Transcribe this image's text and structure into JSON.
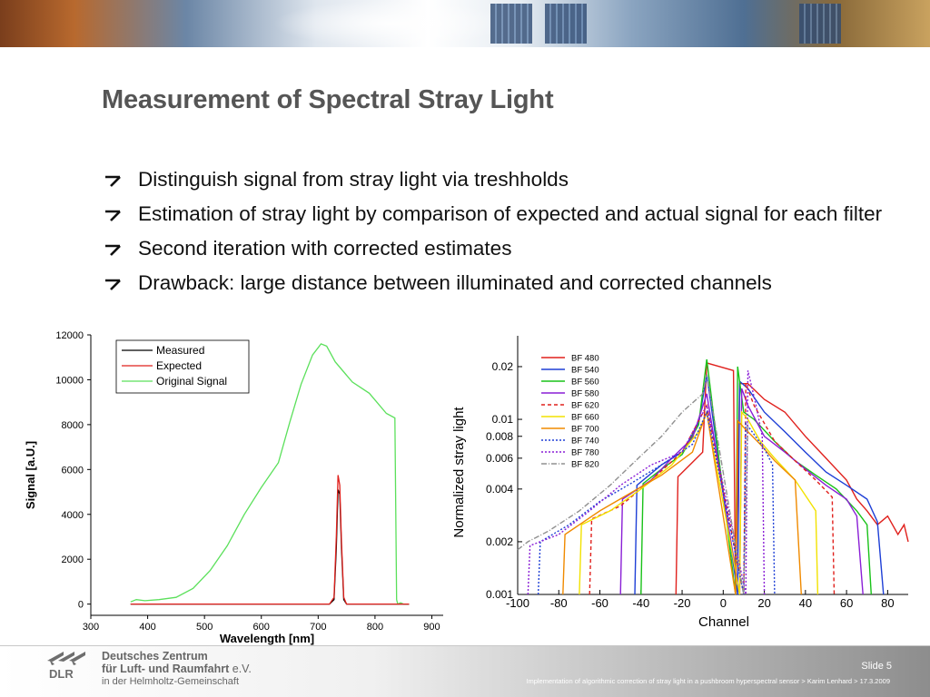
{
  "slide": {
    "title": "Measurement of Spectral Stray Light",
    "bullets": [
      "Distinguish signal from stray light via treshholds",
      "Estimation of stray light by comparison of expected and actual signal for each filter",
      "Second iteration with corrected estimates",
      "Drawback: large distance between illuminated and corrected channels"
    ]
  },
  "footer": {
    "org_line1": "Deutsches Zentrum",
    "org_line2": "für Luft- und Raumfahrt",
    "org_line2_suffix": "e.V.",
    "org_line3": "in der Helmholtz-Gemeinschaft",
    "logo_text": "DLR",
    "slide_label": "Slide 5",
    "caption": "Implementation of algorithmic correction of stray light in a pushbroom hyperspectral sensor > Karim Lenhard > 17.3.2009"
  },
  "colors": {
    "measured": "#000000",
    "expected": "#e0201c",
    "original": "#5be05b",
    "title": "#555555"
  },
  "chart_data": [
    {
      "type": "line",
      "xlabel": "Wavelength [nm]",
      "ylabel": "Signal [a.U.]",
      "xlim": [
        300,
        920
      ],
      "ylim": [
        -500,
        12000
      ],
      "xticks": [
        300,
        400,
        500,
        600,
        700,
        800,
        900
      ],
      "yticks": [
        0,
        2000,
        4000,
        6000,
        8000,
        10000,
        12000
      ],
      "legend_position": "top-left",
      "grid": false,
      "series": [
        {
          "name": "Measured",
          "color": "#000000",
          "x": [
            370,
            720,
            728,
            732,
            735,
            738,
            741,
            745,
            750,
            860
          ],
          "y": [
            0,
            0,
            200,
            2500,
            5100,
            4900,
            2500,
            200,
            0,
            0
          ]
        },
        {
          "name": "Expected",
          "color": "#e0201c",
          "x": [
            370,
            720,
            728,
            732,
            735,
            738,
            741,
            745,
            750,
            860
          ],
          "y": [
            0,
            0,
            300,
            3000,
            5750,
            5300,
            2800,
            300,
            0,
            0
          ]
        },
        {
          "name": "Original Signal",
          "color": "#5be05b",
          "x": [
            370,
            380,
            395,
            420,
            450,
            480,
            510,
            540,
            570,
            600,
            630,
            650,
            670,
            690,
            705,
            715,
            730,
            760,
            790,
            820,
            835,
            838,
            840,
            845,
            850,
            860
          ],
          "y": [
            100,
            200,
            150,
            200,
            300,
            700,
            1500,
            2600,
            4000,
            5200,
            6300,
            8100,
            9800,
            11100,
            11600,
            11500,
            10800,
            9900,
            9400,
            8500,
            8300,
            200,
            0,
            60,
            0,
            0
          ]
        }
      ]
    },
    {
      "type": "line",
      "xlabel": "Channel",
      "ylabel": "Normalized stray light",
      "yscale": "log",
      "xlim": [
        -100,
        90
      ],
      "ylim": [
        0.001,
        0.03
      ],
      "xticks": [
        -100,
        -80,
        -60,
        -40,
        -20,
        0,
        20,
        40,
        60,
        80
      ],
      "ytick_labels": [
        "0.001",
        "0.002",
        "0.004",
        "0.006",
        "0.008",
        "0.01",
        "0.02"
      ],
      "ytick_values": [
        0.001,
        0.002,
        0.004,
        0.006,
        0.008,
        0.01,
        0.02
      ],
      "legend_position": "top-left",
      "grid": false,
      "series": [
        {
          "name": "BF 480",
          "color": "#e0201c",
          "dash": "solid",
          "x": [
            -23,
            -22,
            -10,
            -8,
            5,
            6,
            8,
            12,
            20,
            30,
            40,
            50,
            60,
            65,
            70,
            75,
            80,
            85,
            88,
            90
          ],
          "y": [
            0.001,
            0.0047,
            0.0065,
            0.021,
            0.019,
            0.001,
            0.016,
            0.016,
            0.013,
            0.011,
            0.008,
            0.006,
            0.0045,
            0.0035,
            0.003,
            0.0025,
            0.0028,
            0.0022,
            0.0025,
            0.002
          ]
        },
        {
          "name": "BF 540",
          "color": "#1e3fd6",
          "dash": "solid",
          "x": [
            -43,
            -42,
            -30,
            -20,
            -12,
            -8,
            7,
            8,
            12,
            20,
            30,
            40,
            50,
            60,
            70,
            75,
            78
          ],
          "y": [
            0.001,
            0.0042,
            0.0055,
            0.0065,
            0.0095,
            0.018,
            0.001,
            0.0165,
            0.015,
            0.011,
            0.0085,
            0.0065,
            0.005,
            0.0042,
            0.0035,
            0.0026,
            0.001
          ]
        },
        {
          "name": "BF 560",
          "color": "#19c219",
          "dash": "solid",
          "x": [
            -40,
            -39,
            -30,
            -20,
            -12,
            -8,
            6,
            7,
            10,
            15,
            25,
            35,
            45,
            55,
            65,
            70,
            72
          ],
          "y": [
            0.001,
            0.0043,
            0.0052,
            0.0063,
            0.0093,
            0.022,
            0.001,
            0.02,
            0.011,
            0.01,
            0.0075,
            0.0058,
            0.0048,
            0.004,
            0.003,
            0.0025,
            0.001
          ]
        },
        {
          "name": "BF 580",
          "color": "#8a1fd6",
          "dash": "solid",
          "x": [
            -50,
            -49,
            -35,
            -25,
            -15,
            -8,
            8,
            9,
            12,
            20,
            30,
            40,
            50,
            60,
            65,
            68
          ],
          "y": [
            0.001,
            0.0035,
            0.0045,
            0.006,
            0.0078,
            0.014,
            0.001,
            0.015,
            0.012,
            0.008,
            0.0065,
            0.0052,
            0.0042,
            0.0035,
            0.0028,
            0.001
          ]
        },
        {
          "name": "BF 620",
          "color": "#e0201c",
          "dash": "dash",
          "x": [
            -65,
            -64,
            -50,
            -35,
            -20,
            -8,
            10,
            11,
            15,
            25,
            35,
            45,
            53,
            54
          ],
          "y": [
            0.001,
            0.0027,
            0.0032,
            0.0045,
            0.0065,
            0.012,
            0.001,
            0.016,
            0.012,
            0.0075,
            0.0058,
            0.0045,
            0.0036,
            0.001
          ]
        },
        {
          "name": "BF 660",
          "color": "#f2e200",
          "dash": "solid",
          "x": [
            -70,
            -69,
            -55,
            -40,
            -25,
            -12,
            -8,
            8,
            9,
            12,
            18,
            25,
            35,
            45,
            46
          ],
          "y": [
            0.001,
            0.0025,
            0.003,
            0.004,
            0.0055,
            0.0085,
            0.011,
            0.001,
            0.011,
            0.01,
            0.0075,
            0.006,
            0.0045,
            0.003,
            0.001
          ]
        },
        {
          "name": "BF 700",
          "color": "#f08a00",
          "dash": "solid",
          "x": [
            -78,
            -77,
            -60,
            -45,
            -30,
            -15,
            -8,
            6,
            7,
            10,
            18,
            25,
            35,
            38
          ],
          "y": [
            0.001,
            0.0022,
            0.003,
            0.0038,
            0.0048,
            0.0065,
            0.011,
            0.001,
            0.0098,
            0.009,
            0.0072,
            0.0058,
            0.0045,
            0.001
          ]
        },
        {
          "name": "BF 740",
          "color": "#1e3fd6",
          "dash": "dot",
          "x": [
            -90,
            -89,
            -75,
            -60,
            -45,
            -30,
            -15,
            -8,
            10,
            11,
            15,
            20,
            24,
            25
          ],
          "y": [
            0.001,
            0.002,
            0.0025,
            0.0034,
            0.0043,
            0.0055,
            0.0072,
            0.011,
            0.001,
            0.0095,
            0.0082,
            0.0068,
            0.0055,
            0.001
          ]
        },
        {
          "name": "BF 780",
          "color": "#8a1fd6",
          "dash": "dot",
          "x": [
            -95,
            -94,
            -80,
            -65,
            -50,
            -35,
            -20,
            -8,
            11,
            12,
            13,
            16,
            19,
            20
          ],
          "y": [
            0.001,
            0.0019,
            0.0022,
            0.003,
            0.0042,
            0.0055,
            0.0065,
            0.012,
            0.001,
            0.019,
            0.017,
            0.012,
            0.008,
            0.001
          ]
        },
        {
          "name": "BF 820",
          "color": "#909090",
          "dash": "dashdot",
          "x": [
            -100,
            -95,
            -85,
            -70,
            -55,
            -40,
            -30,
            -20,
            -10,
            -8,
            10,
            12
          ],
          "y": [
            0.0018,
            0.002,
            0.0023,
            0.003,
            0.0042,
            0.0062,
            0.008,
            0.011,
            0.014,
            0.018,
            0.001,
            0.0095
          ]
        }
      ]
    }
  ]
}
